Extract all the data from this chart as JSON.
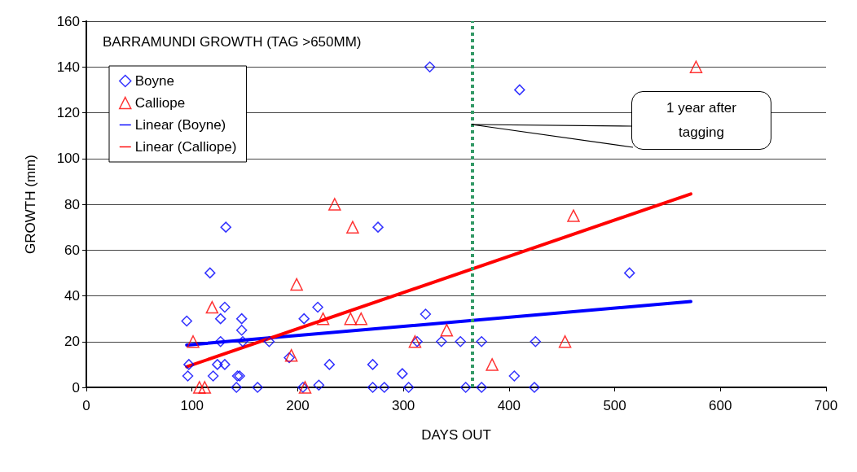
{
  "chart_data": {
    "type": "scatter",
    "title": "BARRAMUNDI GROWTH (TAG >650MM)",
    "xlabel": "DAYS OUT",
    "ylabel": "GROWTH (mm)",
    "xlim": [
      0,
      700
    ],
    "xticks": [
      0,
      100,
      200,
      300,
      400,
      500,
      600,
      700
    ],
    "ylim": [
      0,
      160
    ],
    "yticks": [
      0,
      20,
      40,
      60,
      80,
      100,
      120,
      140,
      160
    ],
    "grid": "y",
    "legend": "top left",
    "series": [
      {
        "name": "Boyne",
        "color": "#0000ff",
        "marker": "diamond",
        "x": [
          95,
          97,
          96,
          117,
          132,
          131,
          127,
          127,
          124,
          131,
          120,
          147,
          147,
          148,
          143,
          145,
          142,
          162,
          173,
          192,
          206,
          219,
          230,
          220,
          205,
          271,
          271,
          282,
          299,
          305,
          313,
          321,
          336,
          354,
          359,
          374,
          374,
          276,
          325,
          410,
          514,
          425,
          405,
          424
        ],
        "values": [
          29,
          10,
          5,
          50,
          70,
          35,
          30,
          20,
          10,
          10,
          5,
          30,
          25,
          20,
          5,
          5,
          0,
          0,
          20,
          13,
          30,
          35,
          10,
          1,
          0,
          10,
          0,
          0,
          6,
          0,
          20,
          32,
          20,
          20,
          0,
          20,
          0,
          70,
          140,
          130,
          50,
          20,
          5,
          0
        ]
      },
      {
        "name": "Calliope",
        "color": "#ff0000",
        "marker": "triangle",
        "x": [
          101,
          119,
          107,
          112,
          199,
          194,
          207,
          224,
          250,
          260,
          235,
          252,
          311,
          341,
          384,
          453,
          461,
          577
        ],
        "values": [
          20,
          35,
          0,
          0,
          45,
          14,
          0,
          30,
          30,
          30,
          80,
          70,
          20,
          25,
          10,
          20,
          75,
          140
        ]
      },
      {
        "name": "Linear (Boyne)",
        "type": "line",
        "color": "#0000ff",
        "marker": "none",
        "x": [
          95,
          572
        ],
        "values": [
          18.5,
          37.5
        ]
      },
      {
        "name": "Linear (Calliope)",
        "type": "line",
        "color": "#ff0000",
        "marker": "none",
        "x": [
          95,
          572
        ],
        "values": [
          9,
          84.5
        ]
      }
    ],
    "ref_lines": [
      {
        "axis": "x",
        "value": 365,
        "color": "#339966",
        "line_style": "dotted"
      }
    ],
    "annotations": [
      "1 year after tagging"
    ]
  }
}
